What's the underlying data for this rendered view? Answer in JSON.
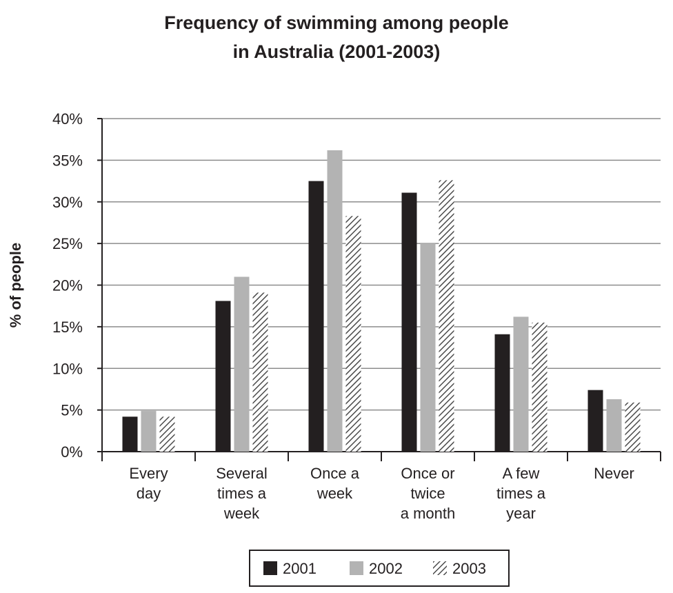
{
  "chart_data": {
    "type": "bar",
    "title": [
      "Frequency of swimming among people",
      "in Australia (2001-2003)"
    ],
    "xlabel": "",
    "ylabel": "% of people",
    "ylim": [
      0,
      40
    ],
    "yticks": [
      "0%",
      "5%",
      "10%",
      "15%",
      "20%",
      "25%",
      "30%",
      "35%",
      "40%"
    ],
    "grid": true,
    "legend_position": "bottom-center",
    "categories": [
      [
        "Every",
        "day"
      ],
      [
        "Several",
        "times a",
        "week"
      ],
      [
        "Once a",
        "week"
      ],
      [
        "Once or",
        "twice",
        "a month"
      ],
      [
        "A few",
        "times a",
        "year"
      ],
      [
        "Never"
      ]
    ],
    "series": [
      {
        "name": "2001",
        "style": "solid",
        "color": "#231f20",
        "values": [
          4.2,
          18.1,
          32.5,
          31.1,
          14.1,
          7.4
        ]
      },
      {
        "name": "2002",
        "style": "solid",
        "color": "#b3b3b3",
        "values": [
          4.9,
          21.0,
          36.2,
          25.0,
          16.2,
          6.3
        ]
      },
      {
        "name": "2003",
        "style": "hatched",
        "color": "#555555",
        "values": [
          4.2,
          19.1,
          28.3,
          32.6,
          15.5,
          5.9
        ]
      }
    ]
  }
}
